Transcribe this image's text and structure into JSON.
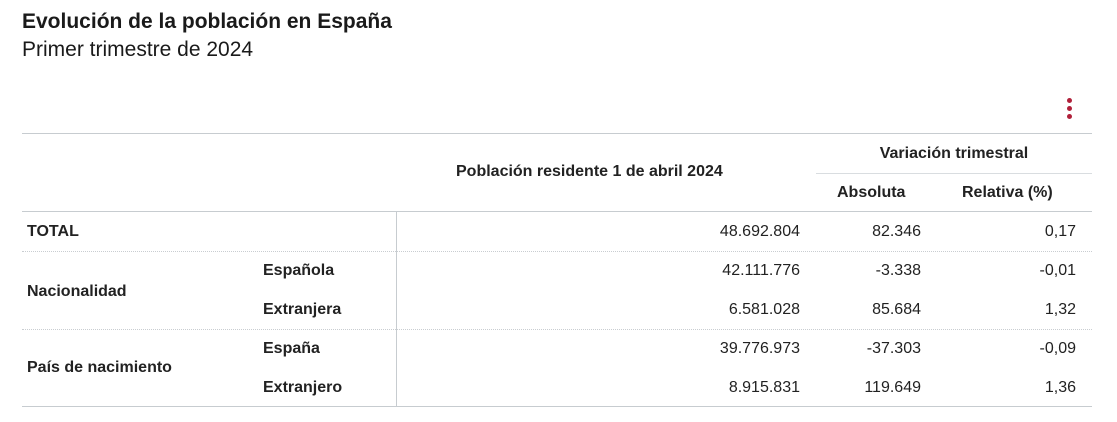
{
  "header": {
    "title": "Evolución de la población en España",
    "subtitle": "Primer trimestre de 2024"
  },
  "menu": {
    "icon": "vertical-ellipsis-icon",
    "color": "#b0203a"
  },
  "table": {
    "columns": {
      "population": "Población residente 1 de abril 2024",
      "variation_group": "Variación trimestral",
      "absolute": "Absoluta",
      "relative": "Relativa (%)"
    },
    "total": {
      "label": "TOTAL",
      "population": "48.692.804",
      "absolute": "82.346",
      "relative": "0,17"
    },
    "groups": [
      {
        "label": "Nacionalidad",
        "rows": [
          {
            "label": "Española",
            "population": "42.111.776",
            "absolute": "-3.338",
            "relative": "-0,01"
          },
          {
            "label": "Extranjera",
            "population": "6.581.028",
            "absolute": "85.684",
            "relative": "1,32"
          }
        ]
      },
      {
        "label": "País de nacimiento",
        "rows": [
          {
            "label": "España",
            "population": "39.776.973",
            "absolute": "-37.303",
            "relative": "-0,09"
          },
          {
            "label": "Extranjero",
            "population": "8.915.831",
            "absolute": "119.649",
            "relative": "1,36"
          }
        ]
      }
    ]
  }
}
